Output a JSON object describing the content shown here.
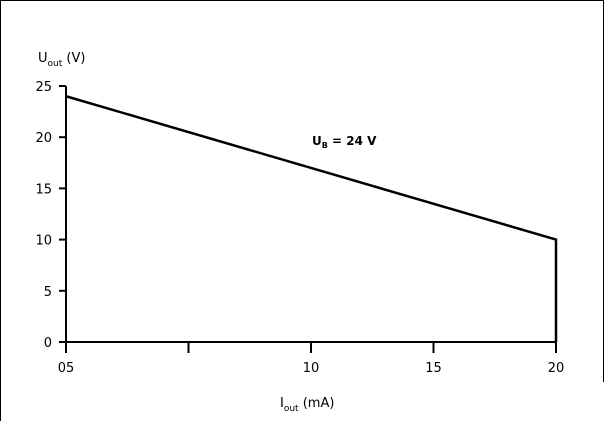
{
  "chart_data": {
    "type": "line",
    "title": "",
    "ylabel": {
      "main": "U",
      "sub": "out",
      "unit": " (V)"
    },
    "xlabel": {
      "main": "I",
      "sub": "out",
      "unit": " (mA)"
    },
    "annotation": {
      "main": "U",
      "sub": "B",
      "rest": " = 24 V"
    },
    "x_ticks": [
      {
        "value": 0,
        "label": "05"
      },
      {
        "value": 5,
        "label": ""
      },
      {
        "value": 10,
        "label": "10"
      },
      {
        "value": 15,
        "label": "15"
      },
      {
        "value": 20,
        "label": "20"
      }
    ],
    "y_ticks": [
      {
        "value": 0,
        "label": "0"
      },
      {
        "value": 5,
        "label": "5"
      },
      {
        "value": 10,
        "label": "10"
      },
      {
        "value": 15,
        "label": "15"
      },
      {
        "value": 20,
        "label": "20"
      },
      {
        "value": 25,
        "label": "25"
      }
    ],
    "xlim": [
      0,
      20
    ],
    "ylim": [
      0,
      25
    ],
    "grid": false,
    "series": [
      {
        "points": [
          {
            "x": 0,
            "y": 24
          },
          {
            "x": 20,
            "y": 10
          },
          {
            "x": 20,
            "y": 0
          }
        ]
      }
    ]
  }
}
